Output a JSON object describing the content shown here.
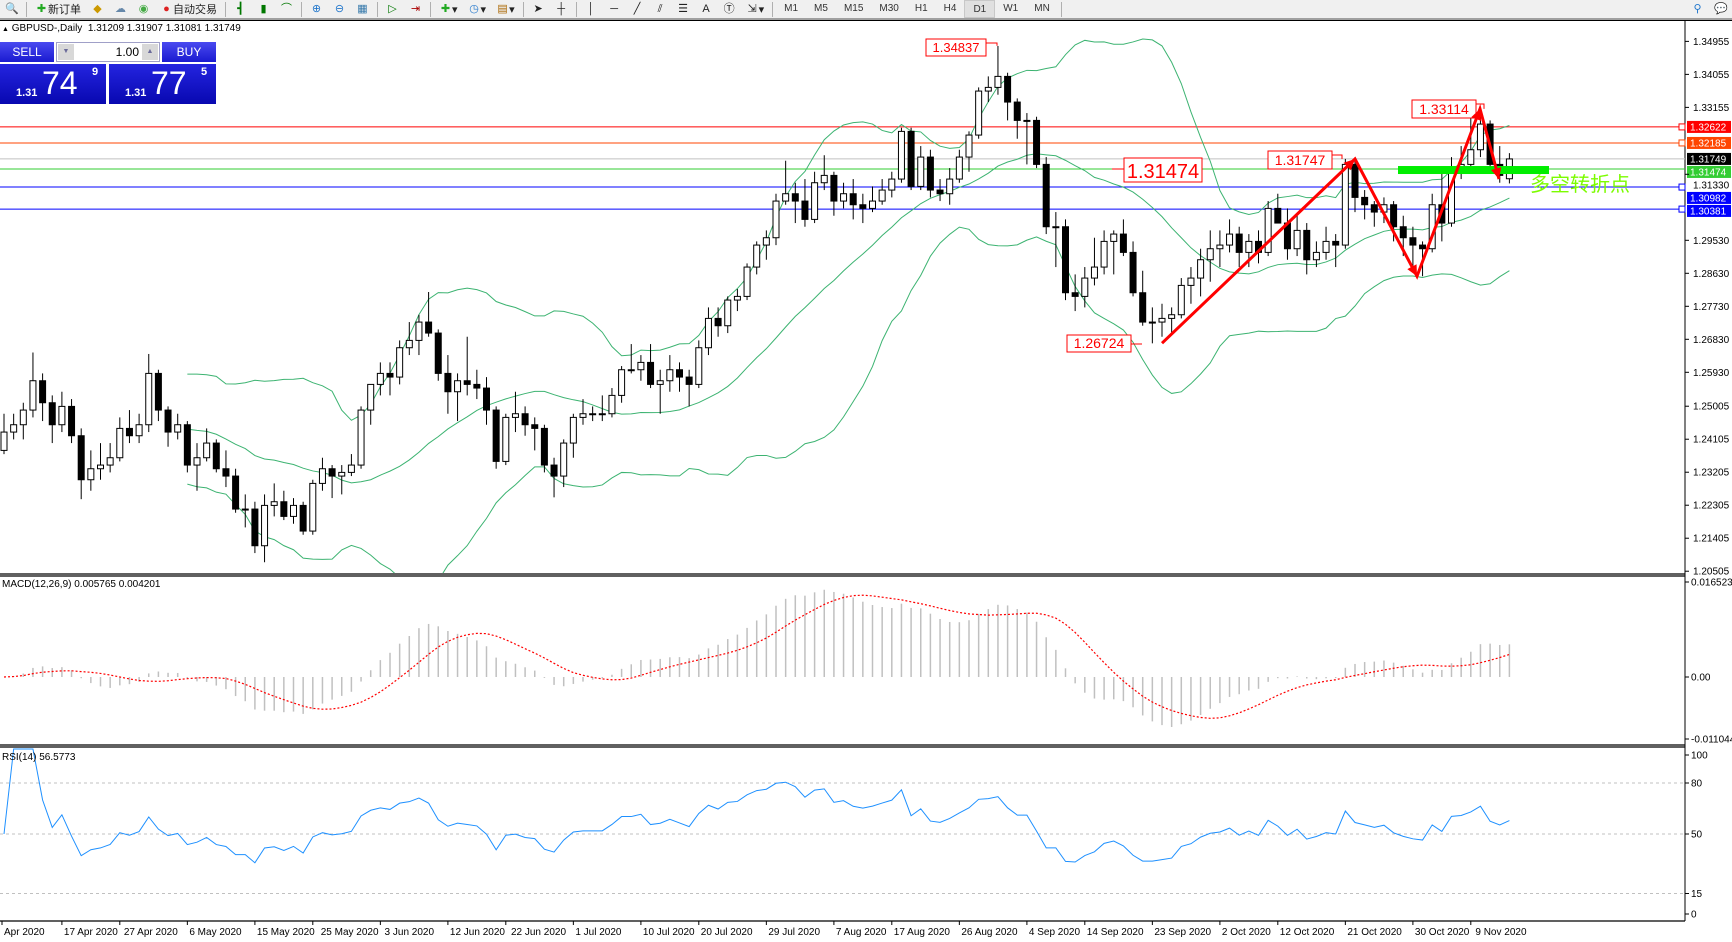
{
  "toolbar": {
    "new_order": "新订单",
    "auto_trading": "自动交易",
    "timeframes": [
      "M1",
      "M5",
      "M15",
      "M30",
      "H1",
      "H4",
      "D1",
      "W1",
      "MN"
    ],
    "active_timeframe": "D1",
    "icons": [
      "print-preview-icon",
      "new-order-icon",
      "market-watch-icon",
      "data-cloud-icon",
      "signals-icon",
      "auto-trading-icon",
      "bar-chart-icon",
      "candlestick-icon",
      "line-chart-icon",
      "zoom-in-icon",
      "zoom-out-icon",
      "tile-windows-icon",
      "autoscroll-icon",
      "chart-shift-icon",
      "indicators-icon",
      "periods-icon",
      "templates-icon",
      "cursor-icon",
      "crosshair-icon",
      "vertical-line-icon",
      "horizontal-line-icon",
      "trendline-icon",
      "equidistant-channel-icon",
      "fibonacci-icon",
      "text-icon",
      "text-label-icon",
      "arrows-icon",
      "search-icon",
      "chat-icon"
    ]
  },
  "chart_header": {
    "symbol": "GBPUSD-,Daily",
    "ohlc": "1.31209 1.31907 1.31081 1.31749"
  },
  "one_click": {
    "sell_label": "SELL",
    "buy_label": "BUY",
    "lot": "1.00",
    "sell_price": {
      "prefix": "1.31",
      "big": "74",
      "sup": "9"
    },
    "buy_price": {
      "prefix": "1.31",
      "big": "77",
      "sup": "5"
    },
    "color": "#1a1ad0"
  },
  "chart_data": {
    "type": "candlestick",
    "symbol": "GBPUSD-",
    "timeframe": "Daily",
    "price_ticks": [
      "1.34955",
      "1.34055",
      "1.33155",
      "1.31330",
      "1.29530",
      "1.28630",
      "1.27730",
      "1.26830",
      "1.25930",
      "1.25005",
      "1.24105",
      "1.23205",
      "1.22305",
      "1.21405",
      "1.20505"
    ],
    "x_tick_labels": [
      "Apr 2020",
      "17 Apr 2020",
      "27 Apr 2020",
      "6 May 2020",
      "15 May 2020",
      "25 May 2020",
      "3 Jun 2020",
      "12 Jun 2020",
      "22 Jun 2020",
      "1 Jul 2020",
      "10 Jul 2020",
      "20 Jul 2020",
      "29 Jul 2020",
      "7 Aug 2020",
      "17 Aug 2020",
      "26 Aug 2020",
      "4 Sep 2020",
      "14 Sep 2020",
      "23 Sep 2020",
      "2 Oct 2020",
      "12 Oct 2020",
      "21 Oct 2020",
      "30 Oct 2020",
      "9 Nov 2020"
    ],
    "bars_columns": [
      "date",
      "open",
      "high",
      "low",
      "close"
    ],
    "bars": [
      [
        "2020-04-09",
        1.238,
        1.248,
        1.237,
        1.243
      ],
      [
        "2020-04-10",
        1.243,
        1.248,
        1.241,
        1.245
      ],
      [
        "2020-04-13",
        1.245,
        1.251,
        1.241,
        1.249
      ],
      [
        "2020-04-14",
        1.249,
        1.2647,
        1.247,
        1.257
      ],
      [
        "2020-04-15",
        1.257,
        1.259,
        1.246,
        1.251
      ],
      [
        "2020-04-16",
        1.251,
        1.253,
        1.24,
        1.245
      ],
      [
        "2020-04-17",
        1.245,
        1.254,
        1.243,
        1.25
      ],
      [
        "2020-04-20",
        1.25,
        1.252,
        1.24,
        1.242
      ],
      [
        "2020-04-21",
        1.242,
        1.244,
        1.2247,
        1.23
      ],
      [
        "2020-04-22",
        1.23,
        1.238,
        1.227,
        1.233
      ],
      [
        "2020-04-23",
        1.233,
        1.24,
        1.23,
        1.234
      ],
      [
        "2020-04-24",
        1.234,
        1.24,
        1.232,
        1.236
      ],
      [
        "2020-04-27",
        1.236,
        1.247,
        1.235,
        1.244
      ],
      [
        "2020-04-28",
        1.244,
        1.249,
        1.24,
        1.242
      ],
      [
        "2020-04-29",
        1.242,
        1.248,
        1.24,
        1.245
      ],
      [
        "2020-04-30",
        1.245,
        1.2643,
        1.243,
        1.259
      ],
      [
        "2020-05-01",
        1.259,
        1.26,
        1.246,
        1.249
      ],
      [
        "2020-05-04",
        1.249,
        1.25,
        1.239,
        1.243
      ],
      [
        "2020-05-05",
        1.243,
        1.248,
        1.241,
        1.245
      ],
      [
        "2020-05-06",
        1.245,
        1.246,
        1.232,
        1.234
      ],
      [
        "2020-05-07",
        1.234,
        1.24,
        1.227,
        1.236
      ],
      [
        "2020-05-08",
        1.236,
        1.244,
        1.235,
        1.24
      ],
      [
        "2020-05-11",
        1.24,
        1.241,
        1.232,
        1.233
      ],
      [
        "2020-05-12",
        1.233,
        1.238,
        1.228,
        1.231
      ],
      [
        "2020-05-13",
        1.231,
        1.233,
        1.221,
        1.222
      ],
      [
        "2020-05-14",
        1.222,
        1.226,
        1.217,
        1.222
      ],
      [
        "2020-05-15",
        1.222,
        1.224,
        1.21,
        1.212
      ],
      [
        "2020-05-18",
        1.212,
        1.226,
        1.2075,
        1.223
      ],
      [
        "2020-05-19",
        1.223,
        1.229,
        1.22,
        1.224
      ],
      [
        "2020-05-20",
        1.224,
        1.227,
        1.219,
        1.22
      ],
      [
        "2020-05-21",
        1.22,
        1.225,
        1.218,
        1.223
      ],
      [
        "2020-05-22",
        1.223,
        1.224,
        1.215,
        1.216
      ],
      [
        "2020-05-25",
        1.216,
        1.23,
        1.215,
        1.229
      ],
      [
        "2020-05-26",
        1.229,
        1.236,
        1.227,
        1.233
      ],
      [
        "2020-05-27",
        1.233,
        1.234,
        1.225,
        1.231
      ],
      [
        "2020-05-28",
        1.231,
        1.234,
        1.226,
        1.232
      ],
      [
        "2020-05-29",
        1.232,
        1.237,
        1.231,
        1.234
      ],
      [
        "2020-06-01",
        1.234,
        1.25,
        1.233,
        1.249
      ],
      [
        "2020-06-02",
        1.249,
        1.256,
        1.245,
        1.256
      ],
      [
        "2020-06-03",
        1.256,
        1.262,
        1.253,
        1.259
      ],
      [
        "2020-06-04",
        1.259,
        1.262,
        1.253,
        1.258
      ],
      [
        "2020-06-05",
        1.258,
        1.268,
        1.256,
        1.266
      ],
      [
        "2020-06-08",
        1.266,
        1.273,
        1.264,
        1.268
      ],
      [
        "2020-06-09",
        1.268,
        1.275,
        1.264,
        1.273
      ],
      [
        "2020-06-10",
        1.273,
        1.2812,
        1.269,
        1.27
      ],
      [
        "2020-06-11",
        1.27,
        1.271,
        1.257,
        1.259
      ],
      [
        "2020-06-12",
        1.259,
        1.264,
        1.248,
        1.254
      ],
      [
        "2020-06-15",
        1.254,
        1.259,
        1.246,
        1.257
      ],
      [
        "2020-06-16",
        1.257,
        1.269,
        1.253,
        1.256
      ],
      [
        "2020-06-17",
        1.256,
        1.26,
        1.252,
        1.255
      ],
      [
        "2020-06-18",
        1.255,
        1.258,
        1.245,
        1.249
      ],
      [
        "2020-06-19",
        1.249,
        1.25,
        1.233,
        1.235
      ],
      [
        "2020-06-22",
        1.235,
        1.248,
        1.234,
        1.247
      ],
      [
        "2020-06-23",
        1.247,
        1.254,
        1.243,
        1.248
      ],
      [
        "2020-06-24",
        1.248,
        1.25,
        1.242,
        1.245
      ],
      [
        "2020-06-25",
        1.245,
        1.247,
        1.238,
        1.244
      ],
      [
        "2020-06-26",
        1.244,
        1.245,
        1.232,
        1.234
      ],
      [
        "2020-06-29",
        1.234,
        1.236,
        1.2252,
        1.231
      ],
      [
        "2020-06-30",
        1.231,
        1.241,
        1.228,
        1.24
      ],
      [
        "2020-07-01",
        1.24,
        1.248,
        1.236,
        1.247
      ],
      [
        "2020-07-02",
        1.247,
        1.252,
        1.245,
        1.248
      ],
      [
        "2020-07-03",
        1.248,
        1.25,
        1.246,
        1.248
      ],
      [
        "2020-07-06",
        1.248,
        1.253,
        1.246,
        1.248
      ],
      [
        "2020-07-07",
        1.248,
        1.255,
        1.247,
        1.253
      ],
      [
        "2020-07-08",
        1.253,
        1.261,
        1.251,
        1.26
      ],
      [
        "2020-07-09",
        1.26,
        1.267,
        1.259,
        1.26
      ],
      [
        "2020-07-10",
        1.26,
        1.264,
        1.257,
        1.262
      ],
      [
        "2020-07-13",
        1.262,
        1.267,
        1.255,
        1.256
      ],
      [
        "2020-07-14",
        1.256,
        1.26,
        1.248,
        1.257
      ],
      [
        "2020-07-15",
        1.257,
        1.264,
        1.254,
        1.26
      ],
      [
        "2020-07-16",
        1.26,
        1.262,
        1.254,
        1.258
      ],
      [
        "2020-07-17",
        1.258,
        1.26,
        1.25,
        1.256
      ],
      [
        "2020-07-20",
        1.256,
        1.268,
        1.255,
        1.266
      ],
      [
        "2020-07-21",
        1.266,
        1.277,
        1.264,
        1.274
      ],
      [
        "2020-07-22",
        1.274,
        1.277,
        1.269,
        1.272
      ],
      [
        "2020-07-23",
        1.272,
        1.28,
        1.27,
        1.279
      ],
      [
        "2020-07-24",
        1.279,
        1.282,
        1.276,
        1.28
      ],
      [
        "2020-07-27",
        1.28,
        1.289,
        1.279,
        1.288
      ],
      [
        "2020-07-28",
        1.288,
        1.295,
        1.286,
        1.294
      ],
      [
        "2020-07-29",
        1.294,
        1.298,
        1.29,
        1.296
      ],
      [
        "2020-07-30",
        1.296,
        1.308,
        1.294,
        1.306
      ],
      [
        "2020-07-31",
        1.306,
        1.317,
        1.305,
        1.308
      ],
      [
        "2020-08-03",
        1.308,
        1.311,
        1.3,
        1.306
      ],
      [
        "2020-08-04",
        1.306,
        1.312,
        1.299,
        1.301
      ],
      [
        "2020-08-05",
        1.301,
        1.314,
        1.3,
        1.311
      ],
      [
        "2020-08-06",
        1.311,
        1.3185,
        1.309,
        1.313
      ],
      [
        "2020-08-07",
        1.313,
        1.314,
        1.302,
        1.306
      ],
      [
        "2020-08-10",
        1.306,
        1.311,
        1.304,
        1.308
      ],
      [
        "2020-08-11",
        1.308,
        1.312,
        1.301,
        1.305
      ],
      [
        "2020-08-12",
        1.305,
        1.308,
        1.3,
        1.304
      ],
      [
        "2020-08-13",
        1.304,
        1.31,
        1.303,
        1.306
      ],
      [
        "2020-08-14",
        1.306,
        1.312,
        1.305,
        1.309
      ],
      [
        "2020-08-17",
        1.309,
        1.314,
        1.307,
        1.312
      ],
      [
        "2020-08-18",
        1.312,
        1.326,
        1.311,
        1.325
      ],
      [
        "2020-08-19",
        1.325,
        1.326,
        1.309,
        1.31
      ],
      [
        "2020-08-20",
        1.31,
        1.321,
        1.309,
        1.318
      ],
      [
        "2020-08-21",
        1.318,
        1.32,
        1.307,
        1.309
      ],
      [
        "2020-08-24",
        1.309,
        1.312,
        1.306,
        1.308
      ],
      [
        "2020-08-25",
        1.308,
        1.315,
        1.305,
        1.312
      ],
      [
        "2020-08-26",
        1.312,
        1.32,
        1.311,
        1.318
      ],
      [
        "2020-08-27",
        1.318,
        1.325,
        1.314,
        1.324
      ],
      [
        "2020-08-28",
        1.324,
        1.337,
        1.323,
        1.336
      ],
      [
        "2020-08-31",
        1.336,
        1.34,
        1.333,
        1.337
      ],
      [
        "2020-09-01",
        1.337,
        1.3483,
        1.335,
        1.34
      ],
      [
        "2020-09-02",
        1.34,
        1.341,
        1.328,
        1.333
      ],
      [
        "2020-09-03",
        1.333,
        1.334,
        1.323,
        1.328
      ],
      [
        "2020-09-04",
        1.328,
        1.33,
        1.316,
        1.328
      ],
      [
        "2020-09-07",
        1.328,
        1.329,
        1.315,
        1.316
      ],
      [
        "2020-09-08",
        1.316,
        1.318,
        1.297,
        1.299
      ],
      [
        "2020-09-09",
        1.299,
        1.303,
        1.288,
        1.299
      ],
      [
        "2020-09-10",
        1.299,
        1.301,
        1.279,
        1.281
      ],
      [
        "2020-09-11",
        1.281,
        1.286,
        1.276,
        1.28
      ],
      [
        "2020-09-14",
        1.28,
        1.288,
        1.277,
        1.285
      ],
      [
        "2020-09-15",
        1.285,
        1.296,
        1.283,
        1.288
      ],
      [
        "2020-09-16",
        1.288,
        1.298,
        1.286,
        1.295
      ],
      [
        "2020-09-17",
        1.295,
        1.298,
        1.286,
        1.297
      ],
      [
        "2020-09-18",
        1.297,
        1.301,
        1.291,
        1.292
      ],
      [
        "2020-09-21",
        1.292,
        1.295,
        1.28,
        1.281
      ],
      [
        "2020-09-22",
        1.281,
        1.287,
        1.272,
        1.273
      ],
      [
        "2020-09-23",
        1.273,
        1.277,
        1.2672,
        1.273
      ],
      [
        "2020-09-24",
        1.273,
        1.278,
        1.269,
        1.274
      ],
      [
        "2020-09-25",
        1.274,
        1.277,
        1.27,
        1.275
      ],
      [
        "2020-09-28",
        1.275,
        1.285,
        1.274,
        1.283
      ],
      [
        "2020-09-29",
        1.283,
        1.288,
        1.278,
        1.285
      ],
      [
        "2020-09-30",
        1.285,
        1.293,
        1.28,
        1.29
      ],
      [
        "2020-10-01",
        1.29,
        1.298,
        1.284,
        1.293
      ],
      [
        "2020-10-02",
        1.293,
        1.298,
        1.288,
        1.294
      ],
      [
        "2020-10-05",
        1.294,
        1.301,
        1.292,
        1.297
      ],
      [
        "2020-10-06",
        1.297,
        1.299,
        1.288,
        1.292
      ],
      [
        "2020-10-07",
        1.292,
        1.297,
        1.288,
        1.295
      ],
      [
        "2020-10-08",
        1.295,
        1.298,
        1.289,
        1.292
      ],
      [
        "2020-10-09",
        1.292,
        1.306,
        1.291,
        1.304
      ],
      [
        "2020-10-12",
        1.304,
        1.308,
        1.3,
        1.3
      ],
      [
        "2020-10-13",
        1.3,
        1.304,
        1.29,
        1.293
      ],
      [
        "2020-10-14",
        1.293,
        1.302,
        1.291,
        1.298
      ],
      [
        "2020-10-15",
        1.298,
        1.3,
        1.286,
        1.29
      ],
      [
        "2020-10-16",
        1.29,
        1.295,
        1.288,
        1.292
      ],
      [
        "2020-10-19",
        1.292,
        1.299,
        1.29,
        1.295
      ],
      [
        "2020-10-20",
        1.295,
        1.297,
        1.288,
        1.294
      ],
      [
        "2020-10-21",
        1.294,
        1.3175,
        1.293,
        1.316
      ],
      [
        "2020-10-22",
        1.316,
        1.317,
        1.303,
        1.307
      ],
      [
        "2020-10-23",
        1.307,
        1.309,
        1.301,
        1.305
      ],
      [
        "2020-10-26",
        1.305,
        1.306,
        1.299,
        1.303
      ],
      [
        "2020-10-27",
        1.303,
        1.307,
        1.3,
        1.305
      ],
      [
        "2020-10-28",
        1.305,
        1.306,
        1.295,
        1.299
      ],
      [
        "2020-10-29",
        1.299,
        1.302,
        1.291,
        1.296
      ],
      [
        "2020-10-30",
        1.296,
        1.299,
        1.288,
        1.294
      ],
      [
        "2020-11-02",
        1.294,
        1.295,
        1.2855,
        1.293
      ],
      [
        "2020-11-03",
        1.293,
        1.308,
        1.292,
        1.305
      ],
      [
        "2020-11-04",
        1.305,
        1.314,
        1.295,
        1.3
      ],
      [
        "2020-11-05",
        1.3,
        1.318,
        1.299,
        1.315
      ],
      [
        "2020-11-06",
        1.315,
        1.321,
        1.312,
        1.316
      ],
      [
        "2020-11-09",
        1.316,
        1.3311,
        1.315,
        1.32
      ],
      [
        "2020-11-10",
        1.32,
        1.329,
        1.318,
        1.327
      ],
      [
        "2020-11-11",
        1.327,
        1.328,
        1.315,
        1.316
      ],
      [
        "2020-11-12",
        1.316,
        1.321,
        1.311,
        1.313
      ],
      [
        "2020-11-13",
        1.31209,
        1.31907,
        1.31081,
        1.31749
      ]
    ],
    "bollinger": {
      "period": 20,
      "deviation": 2,
      "color": "#3cb371"
    },
    "horizontal_lines": [
      {
        "price": "1.32622",
        "color": "#ff0000",
        "marker": true
      },
      {
        "price": "1.32185",
        "color": "#ff4500",
        "marker": true
      },
      {
        "price": "1.31749",
        "color": "#c0c0c0",
        "tag_color": "#000000",
        "marker": false
      },
      {
        "price": "1.31474",
        "color": "#32cd32",
        "marker": false
      },
      {
        "price": "1.30982",
        "color": "#0000ff",
        "marker": true
      },
      {
        "price": "1.30381",
        "color": "#0000ff",
        "marker": true
      }
    ],
    "annotations": {
      "price_labels": [
        {
          "text": "1.34837",
          "color": "#ff0000"
        },
        {
          "text": "1.31474",
          "color": "#ff0000"
        },
        {
          "text": "1.31747",
          "color": "#ff0000"
        },
        {
          "text": "1.26724",
          "color": "#ff0000"
        },
        {
          "text": "1.33114",
          "color": "#ff0000"
        }
      ],
      "zigzag_prices": [
        1.26724,
        1.31747,
        1.2855,
        1.33114,
        1.312
      ],
      "zigzag_color": "#ff0000",
      "pivot_zone_price": 1.31474,
      "pivot_zone_color": "#00ee00",
      "pivot_text": "多空转折点",
      "pivot_text_color": "#7cfc00"
    },
    "macd": {
      "label": "MACD(12,26,9) 0.005765 0.004201",
      "fast": 12,
      "slow": 26,
      "signal": 9,
      "scale_labels": [
        "0.016523",
        "0.00",
        "-0.011044"
      ],
      "ylim": [
        -0.011044,
        0.016523
      ],
      "histogram_color": "#c0c0c0",
      "signal_color": "#ff0000"
    },
    "rsi": {
      "label": "RSI(14) 56.5773",
      "period": 14,
      "scale_labels": [
        "100",
        "80",
        "50",
        "15",
        "0"
      ],
      "levels": [
        80,
        50,
        15
      ],
      "ylim": [
        0,
        100
      ],
      "color": "#1e90ff"
    }
  }
}
